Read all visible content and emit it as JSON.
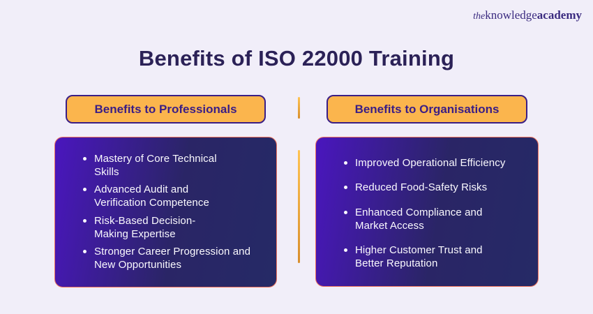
{
  "brand": {
    "logo_the": "the",
    "logo_knowledge": "knowledge",
    "logo_academy": "academy"
  },
  "header": {
    "title": "Benefits of ISO 22000 Training"
  },
  "columns": [
    {
      "header": "Benefits to Professionals",
      "items": [
        "Mastery of Core Technical\nSkills",
        "Advanced Audit and\nVerification Competence",
        "Risk-Based Decision-\nMaking Expertise",
        "Stronger Career Progression and\nNew Opportunities"
      ]
    },
    {
      "header": "Benefits to Organisations",
      "items": [
        "Improved Operational Efficiency",
        "Reduced Food-Safety Risks",
        "Enhanced Compliance and\nMarket Access",
        "Higher Customer Trust and\nBetter Reputation"
      ]
    }
  ],
  "colors": {
    "background": "#F1EEF9",
    "title": "#2B2157",
    "badge_bg": "#FBB54D",
    "badge_border": "#3A1E86",
    "badge_text": "#3A1E86",
    "card_gradient_start": "#4A16BE",
    "card_gradient_mid": "#2A2566",
    "card_gradient_end": "#252A66",
    "card_border": "#F0735C",
    "card_text": "#FAF9FE",
    "divider_top": "#FFC352",
    "divider_bottom": "#D88E2D",
    "logo": "#3B2B80"
  }
}
